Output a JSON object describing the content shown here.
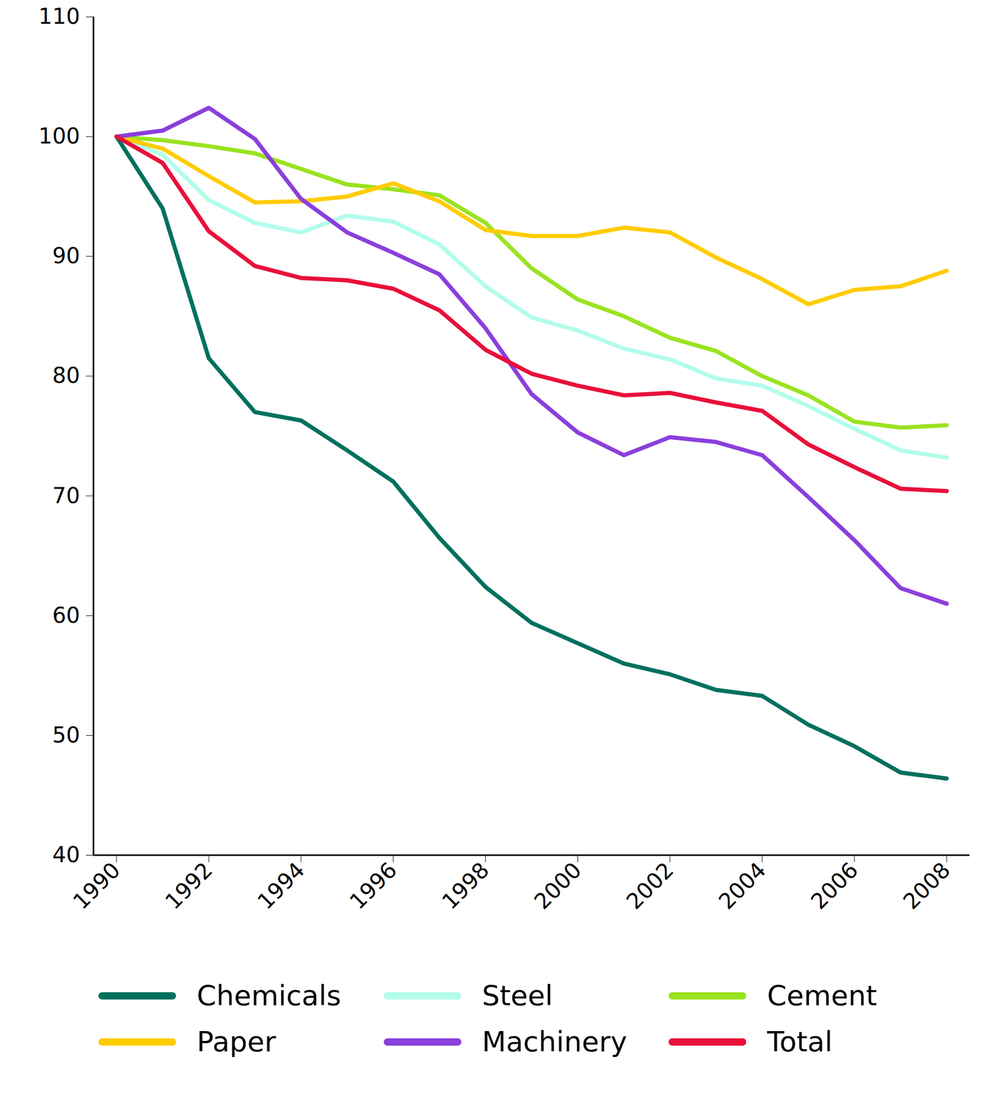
{
  "chart_data": {
    "type": "line",
    "x": [
      1990,
      1991,
      1992,
      1993,
      1994,
      1995,
      1996,
      1997,
      1998,
      1999,
      2000,
      2001,
      2002,
      2003,
      2004,
      2005,
      2006,
      2007,
      2008
    ],
    "xlim": [
      1989.5,
      2008.5
    ],
    "xticks": [
      1990,
      1992,
      1994,
      1996,
      1998,
      2000,
      2002,
      2004,
      2006,
      2008
    ],
    "ylim": [
      40,
      110
    ],
    "yticks": [
      40,
      50,
      60,
      70,
      80,
      90,
      100,
      110
    ],
    "grid": false,
    "legend": "bottom",
    "series": [
      {
        "name": "Chemicals",
        "color": "#00705e",
        "values": [
          100,
          94.0,
          81.5,
          77.0,
          76.3,
          73.8,
          71.2,
          66.5,
          62.4,
          59.4,
          57.7,
          56.0,
          55.1,
          53.8,
          53.3,
          50.9,
          49.1,
          46.9,
          46.4
        ]
      },
      {
        "name": "Steel",
        "color": "#b3fcec",
        "values": [
          100,
          98.5,
          94.7,
          92.8,
          92.0,
          93.4,
          92.9,
          91.0,
          87.5,
          84.9,
          83.8,
          82.3,
          81.4,
          79.8,
          79.2,
          77.5,
          75.6,
          73.8,
          73.2
        ]
      },
      {
        "name": "Cement",
        "color": "#99e31f",
        "values": [
          100,
          99.7,
          99.2,
          98.6,
          97.3,
          96.0,
          95.6,
          95.1,
          92.8,
          89.0,
          86.4,
          85.0,
          83.2,
          82.1,
          80.0,
          78.4,
          76.2,
          75.7,
          75.9
        ]
      },
      {
        "name": "Paper",
        "color": "#ffcc00",
        "values": [
          100,
          99.0,
          96.7,
          94.5,
          94.6,
          95.0,
          96.1,
          94.6,
          92.2,
          91.7,
          91.7,
          92.4,
          92.0,
          89.9,
          88.1,
          86.0,
          87.2,
          87.5,
          88.8
        ]
      },
      {
        "name": "Machinery",
        "color": "#8a3fdc",
        "values": [
          100,
          100.5,
          102.4,
          99.8,
          94.8,
          92.0,
          90.3,
          88.5,
          84.0,
          78.5,
          75.3,
          73.4,
          74.9,
          74.5,
          73.4,
          69.9,
          66.3,
          62.3,
          61.0
        ]
      },
      {
        "name": "Total",
        "color": "#e8103a",
        "values": [
          100,
          97.8,
          92.1,
          89.2,
          88.2,
          88.0,
          87.3,
          85.5,
          82.2,
          80.2,
          79.2,
          78.4,
          78.6,
          77.8,
          77.1,
          74.3,
          72.4,
          70.6,
          70.4
        ]
      }
    ]
  }
}
